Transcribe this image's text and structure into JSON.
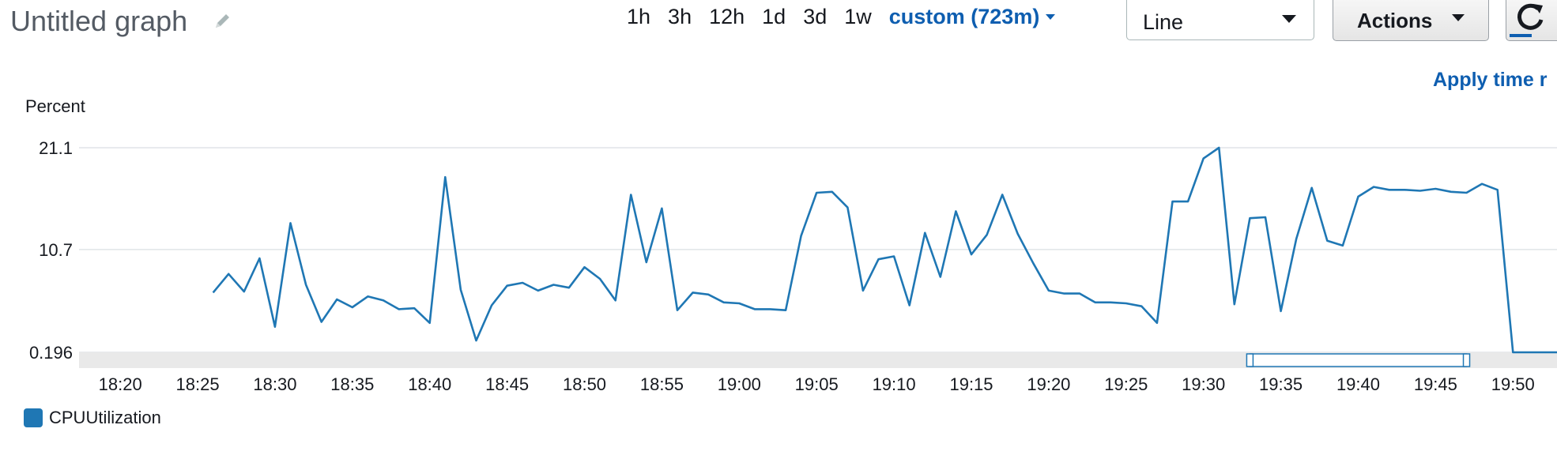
{
  "header": {
    "title": "Untitled graph",
    "time_ranges": [
      "1h",
      "3h",
      "12h",
      "1d",
      "3d",
      "1w"
    ],
    "custom_range": "custom (723m)",
    "view_select": "Line",
    "actions_label": "Actions",
    "apply_link": "Apply time r"
  },
  "icons": {
    "edit": "pencil-icon",
    "refresh": "refresh-icon"
  },
  "colors": {
    "line": "#1f77b4",
    "link": "#0e5eb0"
  },
  "chart_data": {
    "type": "line",
    "ylabel": "Percent",
    "y_ticks": [
      "0.196",
      "10.7",
      "21.1"
    ],
    "y_tick_values": [
      0.196,
      10.7,
      21.1
    ],
    "ylim": [
      0.196,
      21.1
    ],
    "x_ticks": [
      "18:20",
      "18:25",
      "18:30",
      "18:35",
      "18:40",
      "18:45",
      "18:50",
      "18:55",
      "19:00",
      "19:05",
      "19:10",
      "19:15",
      "19:20",
      "19:25",
      "19:30",
      "19:35",
      "19:40",
      "19:45",
      "19:50"
    ],
    "xlim": [
      "18:18",
      "19:53"
    ],
    "grid": true,
    "series": [
      {
        "name": "CPUUtilization",
        "x": [
          "18:26",
          "18:27",
          "18:28",
          "18:29",
          "18:30",
          "18:31",
          "18:32",
          "18:33",
          "18:34",
          "18:35",
          "18:36",
          "18:37",
          "18:38",
          "18:39",
          "18:40",
          "18:41",
          "18:42",
          "18:43",
          "18:44",
          "18:45",
          "18:46",
          "18:47",
          "18:48",
          "18:49",
          "18:50",
          "18:51",
          "18:52",
          "18:53",
          "18:54",
          "18:55",
          "18:56",
          "18:57",
          "18:58",
          "18:59",
          "19:00",
          "19:01",
          "19:02",
          "19:03",
          "19:04",
          "19:05",
          "19:06",
          "19:07",
          "19:08",
          "19:09",
          "19:10",
          "19:11",
          "19:12",
          "19:13",
          "19:14",
          "19:15",
          "19:16",
          "19:17",
          "19:18",
          "19:19",
          "19:20",
          "19:21",
          "19:22",
          "19:23",
          "19:24",
          "19:25",
          "19:26",
          "19:27",
          "19:28",
          "19:29",
          "19:30",
          "19:31",
          "19:32",
          "19:33",
          "19:34",
          "19:35",
          "19:36",
          "19:37",
          "19:38",
          "19:39",
          "19:40",
          "19:41",
          "19:42",
          "19:43",
          "19:44",
          "19:45",
          "19:46",
          "19:47",
          "19:48",
          "19:49",
          "19:50",
          "19:51",
          "19:52",
          "19:53"
        ],
        "values": [
          6.3,
          8.2,
          6.4,
          9.8,
          2.8,
          13.4,
          7.1,
          3.3,
          5.6,
          4.8,
          5.9,
          5.5,
          4.6,
          4.7,
          3.2,
          18.1,
          6.6,
          1.4,
          5.0,
          7.0,
          7.3,
          6.5,
          7.1,
          6.8,
          8.9,
          7.7,
          5.5,
          16.3,
          9.4,
          14.9,
          4.5,
          6.3,
          6.1,
          5.3,
          5.2,
          4.6,
          4.6,
          4.5,
          12.1,
          16.5,
          16.6,
          15.0,
          6.5,
          9.7,
          10.0,
          5.0,
          12.4,
          7.9,
          14.6,
          10.2,
          12.2,
          16.3,
          12.3,
          9.3,
          6.5,
          6.2,
          6.2,
          5.3,
          5.3,
          5.2,
          4.9,
          3.2,
          15.6,
          15.6,
          20.0,
          21.1,
          5.1,
          13.9,
          14.0,
          4.4,
          11.8,
          17.0,
          11.6,
          11.1,
          16.1,
          17.1,
          16.8,
          16.8,
          16.7,
          16.9,
          16.6,
          16.5,
          17.4,
          16.8,
          0.196,
          0.196,
          0.196,
          0.196
        ]
      }
    ],
    "brush_range": [
      "19:33",
      "19:47"
    ],
    "legend": [
      "CPUUtilization"
    ]
  }
}
